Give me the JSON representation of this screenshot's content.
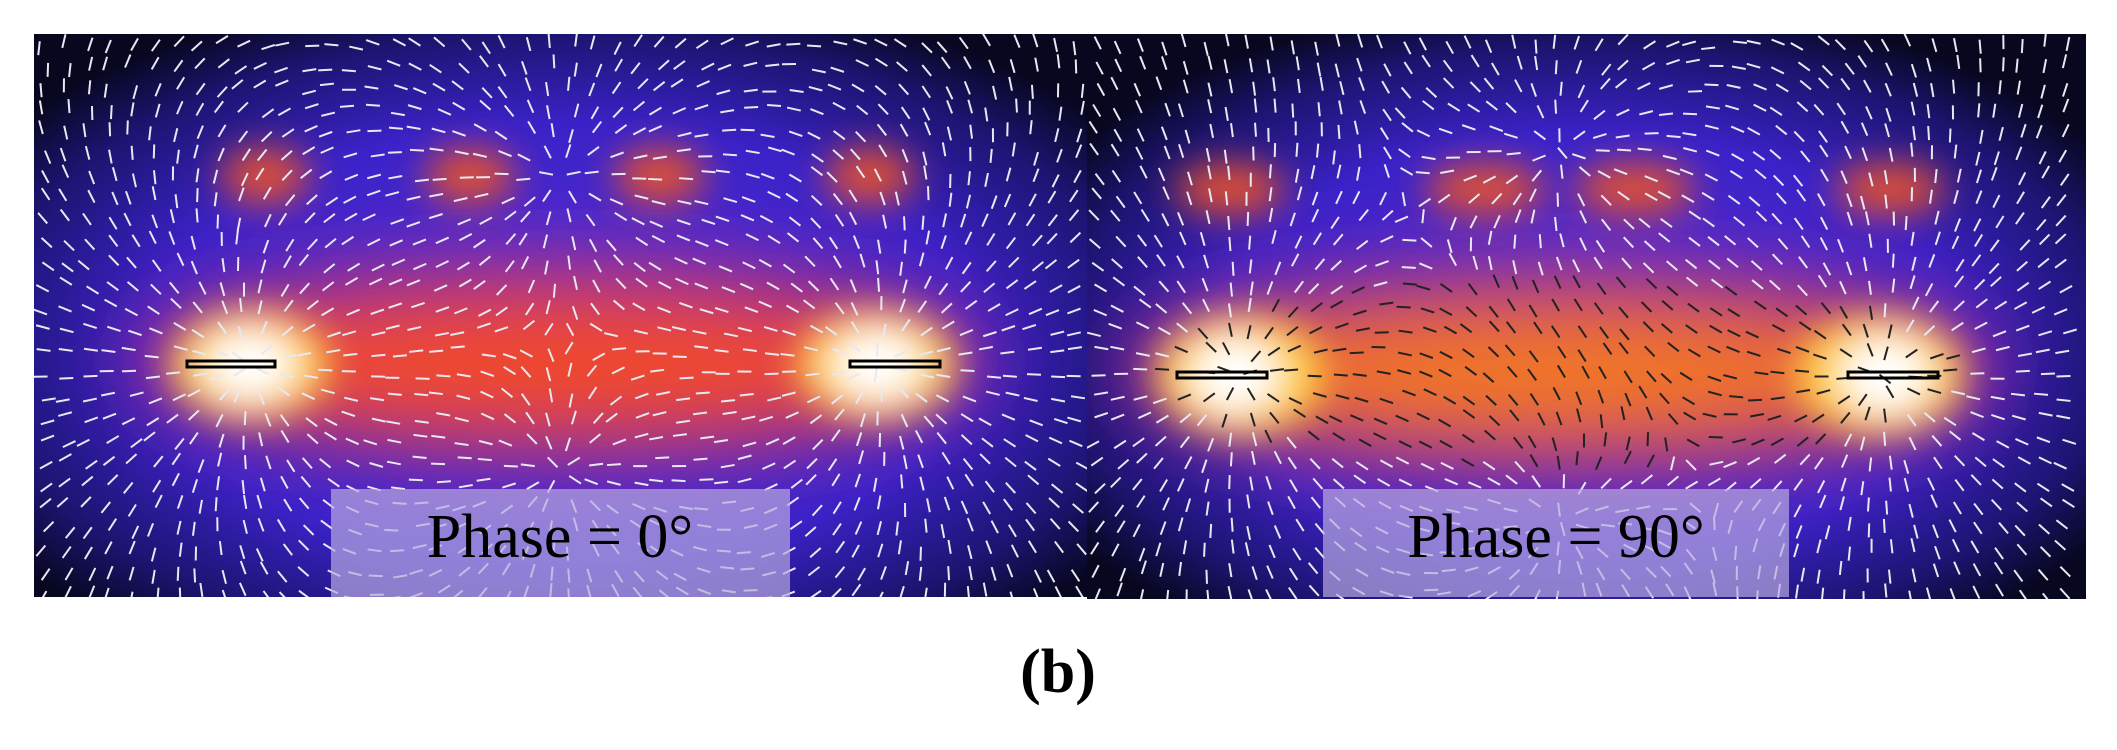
{
  "panels": [
    {
      "label": "Phase = 0°"
    },
    {
      "label": "Phase = 90°"
    }
  ],
  "caption": "(b)"
}
